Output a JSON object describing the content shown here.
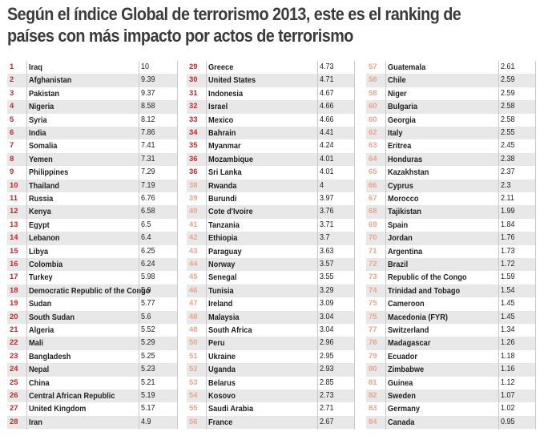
{
  "title": "Según el índice Global de terrorismo 2013, este es el ranking de países con más impacto por actos de terrorismo",
  "columns": [
    [
      {
        "rank": "1",
        "country": "Iraq",
        "score": "10"
      },
      {
        "rank": "2",
        "country": "Afghanistan",
        "score": "9.39"
      },
      {
        "rank": "3",
        "country": "Pakistan",
        "score": "9.37"
      },
      {
        "rank": "4",
        "country": "Nigeria",
        "score": "8.58"
      },
      {
        "rank": "5",
        "country": "Syria",
        "score": "8.12"
      },
      {
        "rank": "6",
        "country": "India",
        "score": "7.86"
      },
      {
        "rank": "7",
        "country": "Somalia",
        "score": "7.41"
      },
      {
        "rank": "8",
        "country": "Yemen",
        "score": "7.31"
      },
      {
        "rank": "9",
        "country": "Philippines",
        "score": "7.29"
      },
      {
        "rank": "10",
        "country": "Thailand",
        "score": "7.19"
      },
      {
        "rank": "11",
        "country": "Russia",
        "score": "6.76"
      },
      {
        "rank": "12",
        "country": "Kenya",
        "score": "6.58"
      },
      {
        "rank": "13",
        "country": "Egypt",
        "score": "6.5"
      },
      {
        "rank": "14",
        "country": "Lebanon",
        "score": "6.4"
      },
      {
        "rank": "15",
        "country": "Libya",
        "score": "6.25"
      },
      {
        "rank": "16",
        "country": "Colombia",
        "score": "6.24"
      },
      {
        "rank": "17",
        "country": "Turkey",
        "score": "5.98"
      },
      {
        "rank": "18",
        "country": "Democratic Republic of the Congo",
        "score": "5.9"
      },
      {
        "rank": "19",
        "country": "Sudan",
        "score": "5.77"
      },
      {
        "rank": "20",
        "country": "South Sudan",
        "score": "5.6"
      },
      {
        "rank": "21",
        "country": "Algeria",
        "score": "5.52"
      },
      {
        "rank": "22",
        "country": "Mali",
        "score": "5.29"
      },
      {
        "rank": "23",
        "country": "Bangladesh",
        "score": "5.25"
      },
      {
        "rank": "24",
        "country": "Nepal",
        "score": "5.23"
      },
      {
        "rank": "25",
        "country": "China",
        "score": "5.21"
      },
      {
        "rank": "26",
        "country": "Central African Republic",
        "score": "5.19"
      },
      {
        "rank": "27",
        "country": "United Kingdom",
        "score": "5.17"
      },
      {
        "rank": "28",
        "country": "Iran",
        "score": "4.9"
      }
    ],
    [
      {
        "rank": "29",
        "country": "Greece",
        "score": "4.73"
      },
      {
        "rank": "30",
        "country": "United States",
        "score": "4.71"
      },
      {
        "rank": "31",
        "country": "Indonesia",
        "score": "4.67"
      },
      {
        "rank": "32",
        "country": "Israel",
        "score": "4.66"
      },
      {
        "rank": "33",
        "country": "Mexico",
        "score": "4.66"
      },
      {
        "rank": "34",
        "country": "Bahrain",
        "score": "4.41"
      },
      {
        "rank": "35",
        "country": "Myanmar",
        "score": "4.24"
      },
      {
        "rank": "36",
        "country": "Mozambique",
        "score": "4.01"
      },
      {
        "rank": "36",
        "country": "Sri Lanka",
        "score": "4.01"
      },
      {
        "rank": "38",
        "country": "Rwanda",
        "score": "4"
      },
      {
        "rank": "39",
        "country": "Burundi",
        "score": "3.97"
      },
      {
        "rank": "40",
        "country": "Cote d'Ivoire",
        "score": "3.76"
      },
      {
        "rank": "41",
        "country": "Tanzania",
        "score": "3.71"
      },
      {
        "rank": "42",
        "country": "Ethiopia",
        "score": "3.7"
      },
      {
        "rank": "43",
        "country": "Paraguay",
        "score": "3.63"
      },
      {
        "rank": "44",
        "country": "Norway",
        "score": "3.57"
      },
      {
        "rank": "45",
        "country": "Senegal",
        "score": "3.55"
      },
      {
        "rank": "46",
        "country": "Tunisia",
        "score": "3.29"
      },
      {
        "rank": "47",
        "country": "Ireland",
        "score": "3.09"
      },
      {
        "rank": "48",
        "country": "Malaysia",
        "score": "3.04"
      },
      {
        "rank": "48",
        "country": "South Africa",
        "score": "3.04"
      },
      {
        "rank": "50",
        "country": "Peru",
        "score": "2.96"
      },
      {
        "rank": "51",
        "country": "Ukraine",
        "score": "2.95"
      },
      {
        "rank": "52",
        "country": "Uganda",
        "score": "2.93"
      },
      {
        "rank": "53",
        "country": "Belarus",
        "score": "2.85"
      },
      {
        "rank": "54",
        "country": "Kosovo",
        "score": "2.73"
      },
      {
        "rank": "55",
        "country": "Saudi Arabia",
        "score": "2.71"
      },
      {
        "rank": "56",
        "country": "France",
        "score": "2.67"
      }
    ],
    [
      {
        "rank": "57",
        "country": "Guatemala",
        "score": "2.61"
      },
      {
        "rank": "58",
        "country": "Chile",
        "score": "2.59"
      },
      {
        "rank": "58",
        "country": "Niger",
        "score": "2.59"
      },
      {
        "rank": "60",
        "country": "Bulgaria",
        "score": "2.58"
      },
      {
        "rank": "60",
        "country": "Georgia",
        "score": "2.58"
      },
      {
        "rank": "62",
        "country": "Italy",
        "score": "2.55"
      },
      {
        "rank": "63",
        "country": "Eritrea",
        "score": "2.45"
      },
      {
        "rank": "64",
        "country": "Honduras",
        "score": "2.38"
      },
      {
        "rank": "65",
        "country": "Kazakhstan",
        "score": "2.37"
      },
      {
        "rank": "66",
        "country": "Cyprus",
        "score": "2.3"
      },
      {
        "rank": "67",
        "country": "Morocco",
        "score": "2.11"
      },
      {
        "rank": "68",
        "country": "Tajikistan",
        "score": "1.99"
      },
      {
        "rank": "69",
        "country": "Spain",
        "score": "1.84"
      },
      {
        "rank": "70",
        "country": "Jordan",
        "score": "1.76"
      },
      {
        "rank": "71",
        "country": "Argentina",
        "score": "1.73"
      },
      {
        "rank": "72",
        "country": "Brazil",
        "score": "1.72"
      },
      {
        "rank": "73",
        "country": "Republic of the Congo",
        "score": "1.59"
      },
      {
        "rank": "74",
        "country": "Trinidad and Tobago",
        "score": "1.54"
      },
      {
        "rank": "75",
        "country": "Cameroon",
        "score": "1.45"
      },
      {
        "rank": "75",
        "country": "Macedonia (FYR)",
        "score": "1.45"
      },
      {
        "rank": "77",
        "country": "Switzerland",
        "score": "1.34"
      },
      {
        "rank": "78",
        "country": "Madagascar",
        "score": "1.26"
      },
      {
        "rank": "79",
        "country": "Ecuador",
        "score": "1.18"
      },
      {
        "rank": "80",
        "country": "Zimbabwe",
        "score": "1.16"
      },
      {
        "rank": "81",
        "country": "Guinea",
        "score": "1.12"
      },
      {
        "rank": "82",
        "country": "Sweden",
        "score": "1.07"
      },
      {
        "rank": "83",
        "country": "Germany",
        "score": "1.02"
      },
      {
        "rank": "84",
        "country": "Canada",
        "score": "0.95"
      }
    ]
  ]
}
